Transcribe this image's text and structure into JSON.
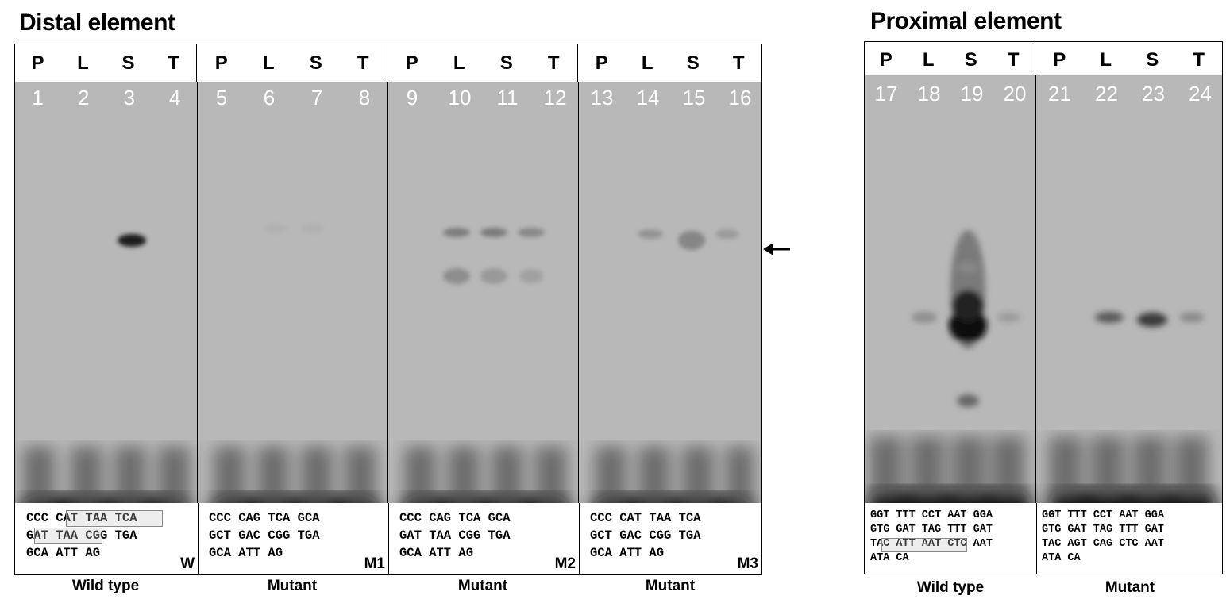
{
  "titles": {
    "distal": "Distal element",
    "proximal": "Proximal element"
  },
  "distal_panels": [
    {
      "lanes": [
        "P",
        "L",
        "S",
        "T"
      ],
      "numbers": [
        "1",
        "2",
        "3",
        "4"
      ],
      "seq": [
        "CCC CAT TAA TCA",
        "GAT TAA CGG TGA",
        "GCA ATT AG"
      ],
      "tag": "W",
      "caption": "Wild type"
    },
    {
      "lanes": [
        "P",
        "L",
        "S",
        "T"
      ],
      "numbers": [
        "5",
        "6",
        "7",
        "8"
      ],
      "seq": [
        "CCC CAG TCA GCA",
        "GCT GAC CGG TGA",
        "GCA ATT AG"
      ],
      "tag": "M1",
      "caption": "Mutant"
    },
    {
      "lanes": [
        "P",
        "L",
        "S",
        "T"
      ],
      "numbers": [
        "9",
        "10",
        "11",
        "12"
      ],
      "seq": [
        "CCC CAG TCA GCA",
        "GAT TAA CGG TGA",
        "GCA ATT AG"
      ],
      "tag": "M2",
      "caption": "Mutant"
    },
    {
      "lanes": [
        "P",
        "L",
        "S",
        "T"
      ],
      "numbers": [
        "13",
        "14",
        "15",
        "16"
      ],
      "seq": [
        "CCC CAT TAA TCA",
        "GCT GAC CGG TGA",
        "GCA ATT AG"
      ],
      "tag": "M3",
      "caption": "Mutant"
    }
  ],
  "proximal_panels": [
    {
      "lanes": [
        "P",
        "L",
        "S",
        "T"
      ],
      "numbers": [
        "17",
        "18",
        "19",
        "20"
      ],
      "seq": [
        "GGT TTT CCT AAT GGA",
        "GTG GAT TAG TTT GAT",
        "TAC ATT AAT CTC AAT",
        "ATA CA"
      ],
      "caption": "Wild type"
    },
    {
      "lanes": [
        "P",
        "L",
        "S",
        "T"
      ],
      "numbers": [
        "21",
        "22",
        "23",
        "24"
      ],
      "seq": [
        "GGT TTT CCT AAT GGA",
        "GTG GAT TAG TTT GAT",
        "TAC AGT CAG CTC AAT",
        "ATA CA"
      ],
      "caption": "Mutant"
    }
  ],
  "colors": {
    "gel": "#b8b8b8",
    "band": "#1a1a1a"
  }
}
